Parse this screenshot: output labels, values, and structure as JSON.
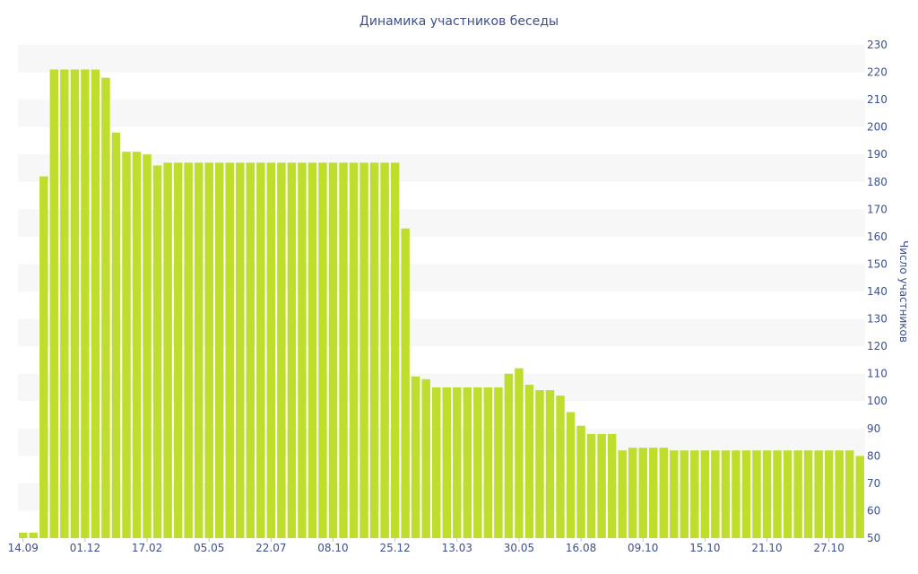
{
  "chart_data": {
    "type": "bar",
    "title": "Динамика участников беседы",
    "ylabel": "Число участников",
    "xlabel": "",
    "ylim": [
      50,
      230
    ],
    "yticks": [
      50,
      60,
      70,
      80,
      90,
      100,
      110,
      120,
      130,
      140,
      150,
      160,
      170,
      180,
      190,
      200,
      210,
      220,
      230
    ],
    "x_tick_labels": [
      {
        "index": 0,
        "label": "14.09"
      },
      {
        "index": 6,
        "label": "01.12"
      },
      {
        "index": 12,
        "label": "17.02"
      },
      {
        "index": 18,
        "label": "05.05"
      },
      {
        "index": 24,
        "label": "22.07"
      },
      {
        "index": 30,
        "label": "08.10"
      },
      {
        "index": 36,
        "label": "25.12"
      },
      {
        "index": 42,
        "label": "13.03"
      },
      {
        "index": 48,
        "label": "30.05"
      },
      {
        "index": 54,
        "label": "16.08"
      },
      {
        "index": 60,
        "label": "09.10"
      },
      {
        "index": 66,
        "label": "15.10"
      },
      {
        "index": 72,
        "label": "21.10"
      },
      {
        "index": 78,
        "label": "27.10"
      }
    ],
    "values": [
      52,
      52,
      182,
      221,
      221,
      221,
      221,
      221,
      218,
      198,
      191,
      191,
      190,
      186,
      187,
      187,
      187,
      187,
      187,
      187,
      187,
      187,
      187,
      187,
      187,
      187,
      187,
      187,
      187,
      187,
      187,
      187,
      187,
      187,
      187,
      187,
      187,
      163,
      109,
      108,
      105,
      105,
      105,
      105,
      105,
      105,
      105,
      110,
      112,
      106,
      104,
      104,
      102,
      96,
      91,
      88,
      88,
      88,
      82,
      83,
      83,
      83,
      83,
      82,
      82,
      82,
      82,
      82,
      82,
      82,
      82,
      82,
      82,
      82,
      82,
      82,
      82,
      82,
      82,
      82,
      82,
      80
    ],
    "bar_color": "#bedd2d",
    "band_color": "#f7f7f7",
    "text_color": "#3d5087",
    "grid": "horizontal bands",
    "legend": "none"
  }
}
